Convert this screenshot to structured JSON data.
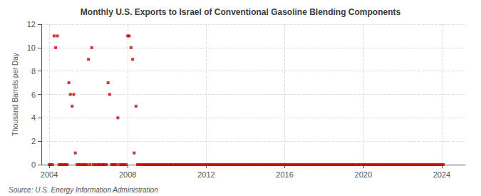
{
  "chart_data": {
    "type": "scatter",
    "title": "Monthly U.S. Exports to Israel of Conventional Gasoline Blending Components",
    "ylabel": "Thousand Barrels per Day",
    "annotations": [
      "Source: U.S. Energy Information Administration"
    ],
    "color": "#cc0000",
    "marker": "square",
    "grid": true,
    "xlim": [
      2003.6,
      2025.2
    ],
    "xticks": [
      2004,
      2008,
      2012,
      2016,
      2020,
      2024
    ],
    "ylim": [
      0,
      12
    ],
    "yticks": [
      0,
      2,
      4,
      6,
      8,
      10,
      12
    ],
    "x": [
      2004.0,
      2004.08,
      2004.17,
      2004.25,
      2004.33,
      2004.42,
      2004.5,
      2004.58,
      2004.67,
      2004.75,
      2004.83,
      2004.92,
      2005.0,
      2005.08,
      2005.17,
      2005.25,
      2005.33,
      2005.42,
      2005.5,
      2005.58,
      2005.67,
      2005.75,
      2005.83,
      2005.92,
      2006.0,
      2006.08,
      2006.17,
      2006.25,
      2006.33,
      2006.42,
      2006.5,
      2006.58,
      2006.67,
      2006.75,
      2006.83,
      2006.92,
      2007.0,
      2007.08,
      2007.17,
      2007.25,
      2007.33,
      2007.42,
      2007.5,
      2007.58,
      2007.67,
      2007.75,
      2007.83,
      2007.92,
      2008.0,
      2008.08,
      2008.17,
      2008.25,
      2008.33,
      2008.42,
      2008.5,
      2008.58,
      2008.67,
      2008.75,
      2008.83,
      2008.92,
      2009.0,
      2009.08,
      2009.17,
      2009.25,
      2009.33,
      2009.42,
      2009.5,
      2009.58,
      2009.67,
      2009.75,
      2009.83,
      2009.92,
      2010.0,
      2010.08,
      2010.17,
      2010.25,
      2010.33,
      2010.42,
      2010.5,
      2010.58,
      2010.67,
      2010.75,
      2010.83,
      2010.92,
      2011.0,
      2011.08,
      2011.17,
      2011.25,
      2011.33,
      2011.42,
      2011.5,
      2011.58,
      2011.67,
      2011.75,
      2011.83,
      2011.92,
      2012.0,
      2012.08,
      2012.17,
      2012.25,
      2012.33,
      2012.42,
      2012.5,
      2012.58,
      2012.67,
      2012.75,
      2012.83,
      2012.92,
      2013.0,
      2013.08,
      2013.17,
      2013.25,
      2013.33,
      2013.42,
      2013.5,
      2013.58,
      2013.67,
      2013.75,
      2013.83,
      2013.92,
      2014.0,
      2014.08,
      2014.17,
      2014.25,
      2014.33,
      2014.42,
      2014.5,
      2014.58,
      2014.67,
      2014.75,
      2014.83,
      2014.92,
      2015.0,
      2015.08,
      2015.17,
      2015.25,
      2015.33,
      2015.42,
      2015.5,
      2015.58,
      2015.67,
      2015.75,
      2015.83,
      2015.92,
      2016.0,
      2016.08,
      2016.17,
      2016.25,
      2016.33,
      2016.42,
      2016.5,
      2016.58,
      2016.67,
      2016.75,
      2016.83,
      2016.92,
      2017.0,
      2017.08,
      2017.17,
      2017.25,
      2017.33,
      2017.42,
      2017.5,
      2017.58,
      2017.67,
      2017.75,
      2017.83,
      2017.92,
      2018.0,
      2018.08,
      2018.17,
      2018.25,
      2018.33,
      2018.42,
      2018.5,
      2018.58,
      2018.67,
      2018.75,
      2018.83,
      2018.92,
      2019.0,
      2019.08,
      2019.17,
      2019.25,
      2019.33,
      2019.42,
      2019.5,
      2019.58,
      2019.67,
      2019.75,
      2019.83,
      2019.92,
      2020.0,
      2020.08,
      2020.17,
      2020.25,
      2020.33,
      2020.42,
      2020.5,
      2020.58,
      2020.67,
      2020.75,
      2020.83,
      2020.92,
      2021.0,
      2021.08,
      2021.17,
      2021.25,
      2021.33,
      2021.42,
      2021.5,
      2021.58,
      2021.67,
      2021.75,
      2021.83,
      2021.92,
      2022.0,
      2022.08,
      2022.17,
      2022.25,
      2022.33,
      2022.42,
      2022.5,
      2022.58,
      2022.67,
      2022.75,
      2022.83,
      2022.92,
      2023.0,
      2023.08,
      2023.17,
      2023.25,
      2023.33,
      2023.42,
      2023.5,
      2023.58,
      2023.67,
      2023.75,
      2023.83,
      2023.92,
      2024.0,
      2024.08
    ],
    "values": [
      0,
      0,
      0,
      11,
      10,
      11,
      0,
      0,
      0,
      0,
      0,
      0,
      7,
      6,
      5,
      6,
      1,
      0,
      0,
      0,
      0,
      0,
      0,
      0,
      9,
      0,
      10,
      0,
      0,
      0,
      0,
      0,
      0,
      0,
      0,
      0,
      7,
      6,
      0,
      0,
      0,
      0,
      4,
      0,
      0,
      0,
      0,
      0,
      11,
      11,
      10,
      9,
      1,
      5,
      0,
      0,
      0,
      0,
      0,
      0,
      0,
      0,
      0,
      0,
      0,
      0,
      0,
      0,
      0,
      0,
      0,
      0,
      0,
      0,
      0,
      0,
      0,
      0,
      0,
      0,
      0,
      0,
      0,
      0,
      0,
      0,
      0,
      0,
      0,
      0,
      0,
      0,
      0,
      0,
      0,
      0,
      0,
      0,
      0,
      0,
      0,
      0,
      0,
      0,
      0,
      0,
      0,
      0,
      0,
      0,
      0,
      0,
      0,
      0,
      0,
      0,
      0,
      0,
      0,
      0,
      0,
      0,
      0,
      0,
      0,
      0,
      0,
      0,
      0,
      0,
      0,
      0,
      0,
      0,
      0,
      0,
      0,
      0,
      0,
      0,
      0,
      0,
      0,
      0,
      0,
      0,
      0,
      0,
      0,
      0,
      0,
      0,
      0,
      0,
      0,
      0,
      0,
      0,
      0,
      0,
      0,
      0,
      0,
      0,
      0,
      0,
      0,
      0,
      0,
      0,
      0,
      0,
      0,
      0,
      0,
      0,
      0,
      0,
      0,
      0,
      0,
      0,
      0,
      0,
      0,
      0,
      0,
      0,
      0,
      0,
      0,
      0,
      0,
      0,
      0,
      0,
      0,
      0,
      0,
      0,
      0,
      0,
      0,
      0,
      0,
      0,
      0,
      0,
      0,
      0,
      0,
      0,
      0,
      0,
      0,
      0,
      0,
      0,
      0,
      0,
      0,
      0,
      0,
      0,
      0,
      0,
      0,
      0,
      0,
      0,
      0,
      0,
      0,
      0,
      0,
      0,
      0,
      0,
      0,
      0,
      0,
      0
    ]
  }
}
